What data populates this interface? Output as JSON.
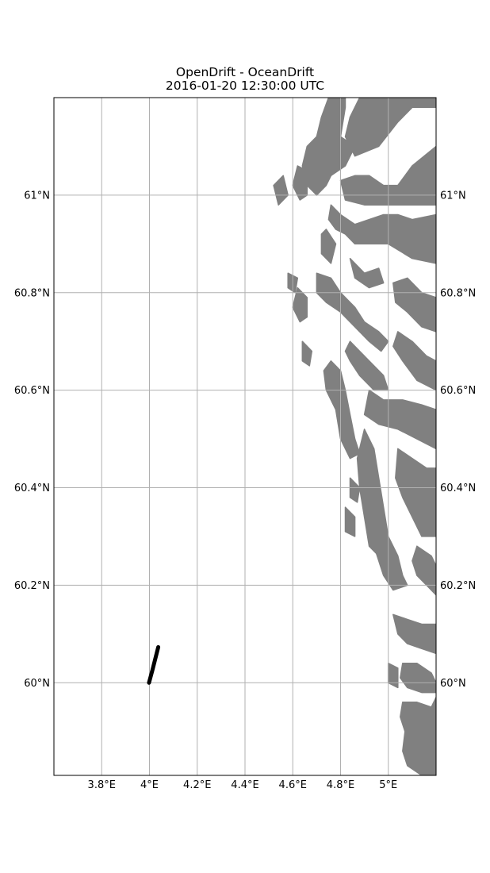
{
  "figure": {
    "title_line_1": "OpenDrift - OceanDrift",
    "title_line_2": "2016-01-20 12:30:00 UTC"
  },
  "colors": {
    "land": "#808080",
    "ocean": "#ffffff",
    "grid": "#b0b0b0",
    "trajectory": "#000000",
    "frame": "#000000"
  },
  "chart_data": {
    "type": "map",
    "projection": "plate-carree",
    "xlim": [
      3.6,
      5.2
    ],
    "ylim": [
      59.81,
      61.2
    ],
    "grid": true,
    "x_ticks": [
      {
        "value": 3.8,
        "label": "3.8°E"
      },
      {
        "value": 4.0,
        "label": "4°E"
      },
      {
        "value": 4.2,
        "label": "4.2°E"
      },
      {
        "value": 4.4,
        "label": "4.4°E"
      },
      {
        "value": 4.6,
        "label": "4.6°E"
      },
      {
        "value": 4.8,
        "label": "4.8°E"
      },
      {
        "value": 5.0,
        "label": "5°E"
      }
    ],
    "y_ticks": [
      {
        "value": 60.0,
        "label": "60°N"
      },
      {
        "value": 60.2,
        "label": "60.2°N"
      },
      {
        "value": 60.4,
        "label": "60.4°N"
      },
      {
        "value": 60.6,
        "label": "60.6°N"
      },
      {
        "value": 60.8,
        "label": "60.8°N"
      },
      {
        "value": 61.0,
        "label": "61°N"
      }
    ],
    "trajectory": {
      "lon": [
        3.998,
        4.012,
        4.025,
        4.037
      ],
      "lat": [
        60.0,
        60.025,
        60.05,
        60.073
      ]
    },
    "land_polygons": [
      [
        [
          5.2,
          61.2
        ],
        [
          4.88,
          61.2
        ],
        [
          4.84,
          61.16
        ],
        [
          4.82,
          61.12
        ],
        [
          4.86,
          61.08
        ],
        [
          4.96,
          61.1
        ],
        [
          5.04,
          61.15
        ],
        [
          5.1,
          61.18
        ],
        [
          5.2,
          61.18
        ]
      ],
      [
        [
          4.75,
          61.2
        ],
        [
          4.72,
          61.16
        ],
        [
          4.7,
          61.12
        ],
        [
          4.66,
          61.1
        ],
        [
          4.64,
          61.06
        ],
        [
          4.66,
          61.02
        ],
        [
          4.7,
          61.0
        ],
        [
          4.74,
          61.02
        ],
        [
          4.78,
          61.06
        ],
        [
          4.8,
          61.12
        ],
        [
          4.82,
          61.18
        ],
        [
          4.82,
          61.2
        ]
      ],
      [
        [
          4.72,
          61.08
        ],
        [
          4.76,
          61.04
        ],
        [
          4.82,
          61.06
        ],
        [
          4.86,
          61.1
        ],
        [
          4.8,
          61.12
        ],
        [
          4.74,
          61.12
        ]
      ],
      [
        [
          4.8,
          61.03
        ],
        [
          4.86,
          61.04
        ],
        [
          4.92,
          61.04
        ],
        [
          4.98,
          61.02
        ],
        [
          5.04,
          61.02
        ],
        [
          5.1,
          61.06
        ],
        [
          5.2,
          61.1
        ],
        [
          5.2,
          60.98
        ],
        [
          5.1,
          60.98
        ],
        [
          5.0,
          60.98
        ],
        [
          4.9,
          60.98
        ],
        [
          4.82,
          60.99
        ]
      ],
      [
        [
          4.62,
          61.06
        ],
        [
          4.66,
          61.05
        ],
        [
          4.66,
          61.0
        ],
        [
          4.63,
          60.99
        ],
        [
          4.6,
          61.02
        ]
      ],
      [
        [
          4.52,
          61.02
        ],
        [
          4.56,
          61.04
        ],
        [
          4.58,
          61.0
        ],
        [
          4.54,
          60.98
        ]
      ],
      [
        [
          4.76,
          60.98
        ],
        [
          4.8,
          60.96
        ],
        [
          4.86,
          60.94
        ],
        [
          4.92,
          60.95
        ],
        [
          4.98,
          60.96
        ],
        [
          5.04,
          60.96
        ],
        [
          5.1,
          60.95
        ],
        [
          5.2,
          60.96
        ],
        [
          5.2,
          60.86
        ],
        [
          5.1,
          60.87
        ],
        [
          5.0,
          60.9
        ],
        [
          4.94,
          60.9
        ],
        [
          4.86,
          60.9
        ],
        [
          4.82,
          60.92
        ],
        [
          4.78,
          60.93
        ],
        [
          4.75,
          60.95
        ]
      ],
      [
        [
          4.74,
          60.93
        ],
        [
          4.78,
          60.9
        ],
        [
          4.76,
          60.86
        ],
        [
          4.72,
          60.88
        ],
        [
          4.72,
          60.92
        ]
      ],
      [
        [
          4.84,
          60.87
        ],
        [
          4.9,
          60.84
        ],
        [
          4.96,
          60.85
        ],
        [
          4.98,
          60.82
        ],
        [
          4.92,
          60.81
        ],
        [
          4.86,
          60.83
        ]
      ],
      [
        [
          4.58,
          60.84
        ],
        [
          4.62,
          60.83
        ],
        [
          4.61,
          60.8
        ],
        [
          4.58,
          60.81
        ]
      ],
      [
        [
          4.7,
          60.84
        ],
        [
          4.76,
          60.83
        ],
        [
          4.8,
          60.8
        ],
        [
          4.86,
          60.77
        ],
        [
          4.9,
          60.74
        ],
        [
          4.96,
          60.72
        ],
        [
          5.0,
          60.7
        ],
        [
          4.97,
          60.68
        ],
        [
          4.92,
          60.7
        ],
        [
          4.86,
          60.73
        ],
        [
          4.8,
          60.76
        ],
        [
          4.74,
          60.78
        ],
        [
          4.7,
          60.8
        ]
      ],
      [
        [
          4.62,
          60.81
        ],
        [
          4.66,
          60.79
        ],
        [
          4.66,
          60.75
        ],
        [
          4.63,
          60.74
        ],
        [
          4.6,
          60.77
        ]
      ],
      [
        [
          5.02,
          60.82
        ],
        [
          5.08,
          60.83
        ],
        [
          5.14,
          60.8
        ],
        [
          5.2,
          60.79
        ],
        [
          5.2,
          60.72
        ],
        [
          5.14,
          60.73
        ],
        [
          5.08,
          60.76
        ],
        [
          5.03,
          60.78
        ]
      ],
      [
        [
          4.84,
          60.7
        ],
        [
          4.88,
          60.68
        ],
        [
          4.92,
          60.66
        ],
        [
          4.98,
          60.63
        ],
        [
          5.0,
          60.6
        ],
        [
          4.94,
          60.6
        ],
        [
          4.88,
          60.63
        ],
        [
          4.84,
          60.66
        ],
        [
          4.82,
          60.68
        ]
      ],
      [
        [
          5.04,
          60.72
        ],
        [
          5.1,
          60.7
        ],
        [
          5.16,
          60.67
        ],
        [
          5.2,
          60.66
        ],
        [
          5.2,
          60.6
        ],
        [
          5.12,
          60.62
        ],
        [
          5.06,
          60.66
        ],
        [
          5.02,
          60.69
        ]
      ],
      [
        [
          4.64,
          60.7
        ],
        [
          4.68,
          60.68
        ],
        [
          4.67,
          60.65
        ],
        [
          4.64,
          60.66
        ]
      ],
      [
        [
          4.76,
          60.66
        ],
        [
          4.8,
          60.64
        ],
        [
          4.82,
          60.6
        ],
        [
          4.84,
          60.55
        ],
        [
          4.86,
          60.5
        ],
        [
          4.88,
          60.47
        ],
        [
          4.84,
          60.46
        ],
        [
          4.8,
          60.5
        ],
        [
          4.78,
          60.56
        ],
        [
          4.74,
          60.6
        ],
        [
          4.73,
          60.64
        ]
      ],
      [
        [
          4.92,
          60.6
        ],
        [
          4.98,
          60.58
        ],
        [
          5.06,
          60.58
        ],
        [
          5.14,
          60.57
        ],
        [
          5.2,
          60.56
        ],
        [
          5.2,
          60.48
        ],
        [
          5.12,
          60.5
        ],
        [
          5.04,
          60.52
        ],
        [
          4.96,
          60.53
        ],
        [
          4.9,
          60.55
        ]
      ],
      [
        [
          4.9,
          60.52
        ],
        [
          4.94,
          60.48
        ],
        [
          4.96,
          60.42
        ],
        [
          4.98,
          60.36
        ],
        [
          5.0,
          60.3
        ],
        [
          5.04,
          60.26
        ],
        [
          5.06,
          60.22
        ],
        [
          5.08,
          60.2
        ],
        [
          5.02,
          60.19
        ],
        [
          4.98,
          60.22
        ],
        [
          4.94,
          60.28
        ],
        [
          4.9,
          60.34
        ],
        [
          4.88,
          60.4
        ],
        [
          4.87,
          60.46
        ]
      ],
      [
        [
          5.04,
          60.48
        ],
        [
          5.1,
          60.46
        ],
        [
          5.16,
          60.44
        ],
        [
          5.2,
          60.44
        ],
        [
          5.2,
          60.3
        ],
        [
          5.14,
          60.3
        ],
        [
          5.1,
          60.34
        ],
        [
          5.06,
          60.38
        ],
        [
          5.03,
          60.42
        ]
      ],
      [
        [
          4.92,
          60.38
        ],
        [
          4.96,
          60.36
        ],
        [
          4.98,
          60.3
        ],
        [
          4.96,
          60.26
        ],
        [
          4.92,
          60.28
        ],
        [
          4.9,
          60.34
        ]
      ],
      [
        [
          4.84,
          60.42
        ],
        [
          4.88,
          60.4
        ],
        [
          4.87,
          60.37
        ],
        [
          4.84,
          60.38
        ]
      ],
      [
        [
          4.82,
          60.36
        ],
        [
          4.86,
          60.34
        ],
        [
          4.86,
          60.3
        ],
        [
          4.82,
          60.31
        ]
      ],
      [
        [
          5.12,
          60.28
        ],
        [
          5.18,
          60.26
        ],
        [
          5.2,
          60.24
        ],
        [
          5.2,
          60.18
        ],
        [
          5.16,
          60.2
        ],
        [
          5.12,
          60.22
        ],
        [
          5.1,
          60.25
        ]
      ],
      [
        [
          5.02,
          60.14
        ],
        [
          5.08,
          60.13
        ],
        [
          5.14,
          60.12
        ],
        [
          5.2,
          60.12
        ],
        [
          5.2,
          60.06
        ],
        [
          5.14,
          60.07
        ],
        [
          5.08,
          60.08
        ],
        [
          5.04,
          60.1
        ]
      ],
      [
        [
          5.06,
          60.04
        ],
        [
          5.12,
          60.04
        ],
        [
          5.18,
          60.02
        ],
        [
          5.2,
          60.0
        ],
        [
          5.2,
          59.98
        ],
        [
          5.14,
          59.98
        ],
        [
          5.08,
          59.99
        ],
        [
          5.05,
          60.01
        ]
      ],
      [
        [
          5.0,
          60.04
        ],
        [
          5.04,
          60.03
        ],
        [
          5.04,
          59.99
        ],
        [
          5.0,
          60.0
        ]
      ],
      [
        [
          5.06,
          59.96
        ],
        [
          5.12,
          59.96
        ],
        [
          5.18,
          59.95
        ],
        [
          5.2,
          59.97
        ],
        [
          5.2,
          59.8
        ],
        [
          5.14,
          59.81
        ],
        [
          5.08,
          59.83
        ],
        [
          5.06,
          59.86
        ],
        [
          5.07,
          59.9
        ],
        [
          5.05,
          59.93
        ]
      ]
    ]
  }
}
